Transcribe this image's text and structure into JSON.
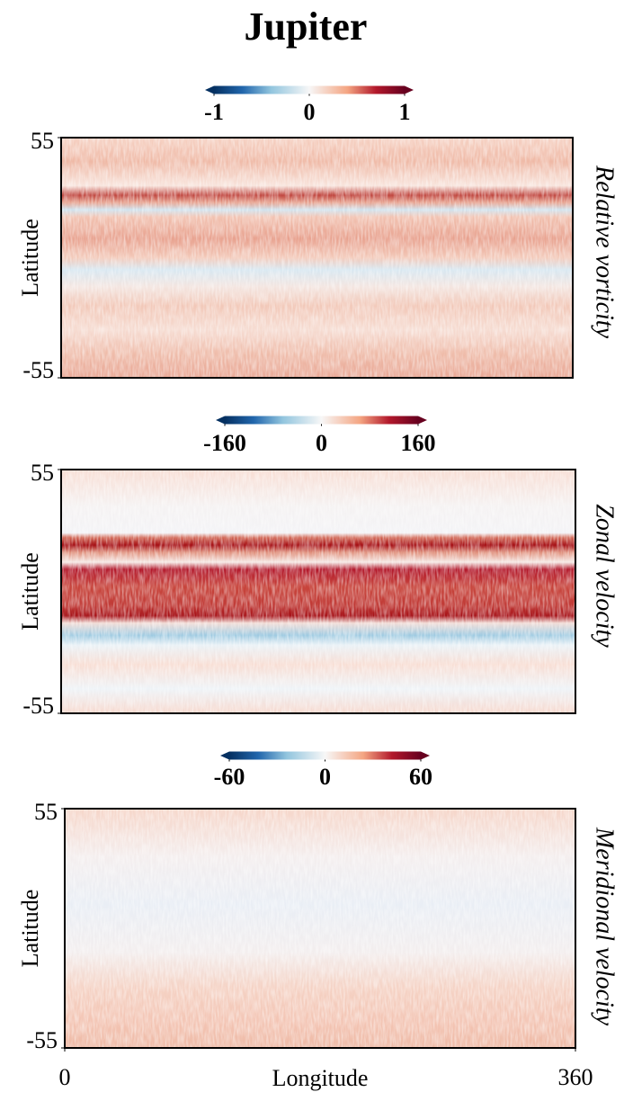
{
  "title": "Jupiter",
  "chart_data": [
    {
      "type": "heatmap",
      "title": "Relative vorticity",
      "ylabel": "Latitude",
      "ylim": [
        -55,
        55
      ],
      "yticks": [
        -55,
        55
      ],
      "colorbar": {
        "cmap": "RdBu_r",
        "clim": [
          -1,
          1
        ],
        "ticks": [
          -1,
          0,
          1
        ]
      }
    },
    {
      "type": "heatmap",
      "title": "Zonal velocity",
      "ylabel": "Latitude",
      "ylim": [
        -55,
        55
      ],
      "yticks": [
        -55,
        55
      ],
      "colorbar": {
        "cmap": "RdBu_r",
        "clim": [
          -160,
          160
        ],
        "ticks": [
          -160,
          0,
          160
        ]
      }
    },
    {
      "type": "heatmap",
      "title": "Meridional velocity",
      "ylabel": "Latitude",
      "ylim": [
        -55,
        55
      ],
      "yticks": [
        -55,
        55
      ],
      "xlabel": "Longitude",
      "xlim": [
        0,
        360
      ],
      "xticks": [
        0,
        360
      ],
      "colorbar": {
        "cmap": "RdBu_r",
        "clim": [
          -60,
          60
        ],
        "ticks": [
          -60,
          0,
          60
        ]
      }
    }
  ]
}
